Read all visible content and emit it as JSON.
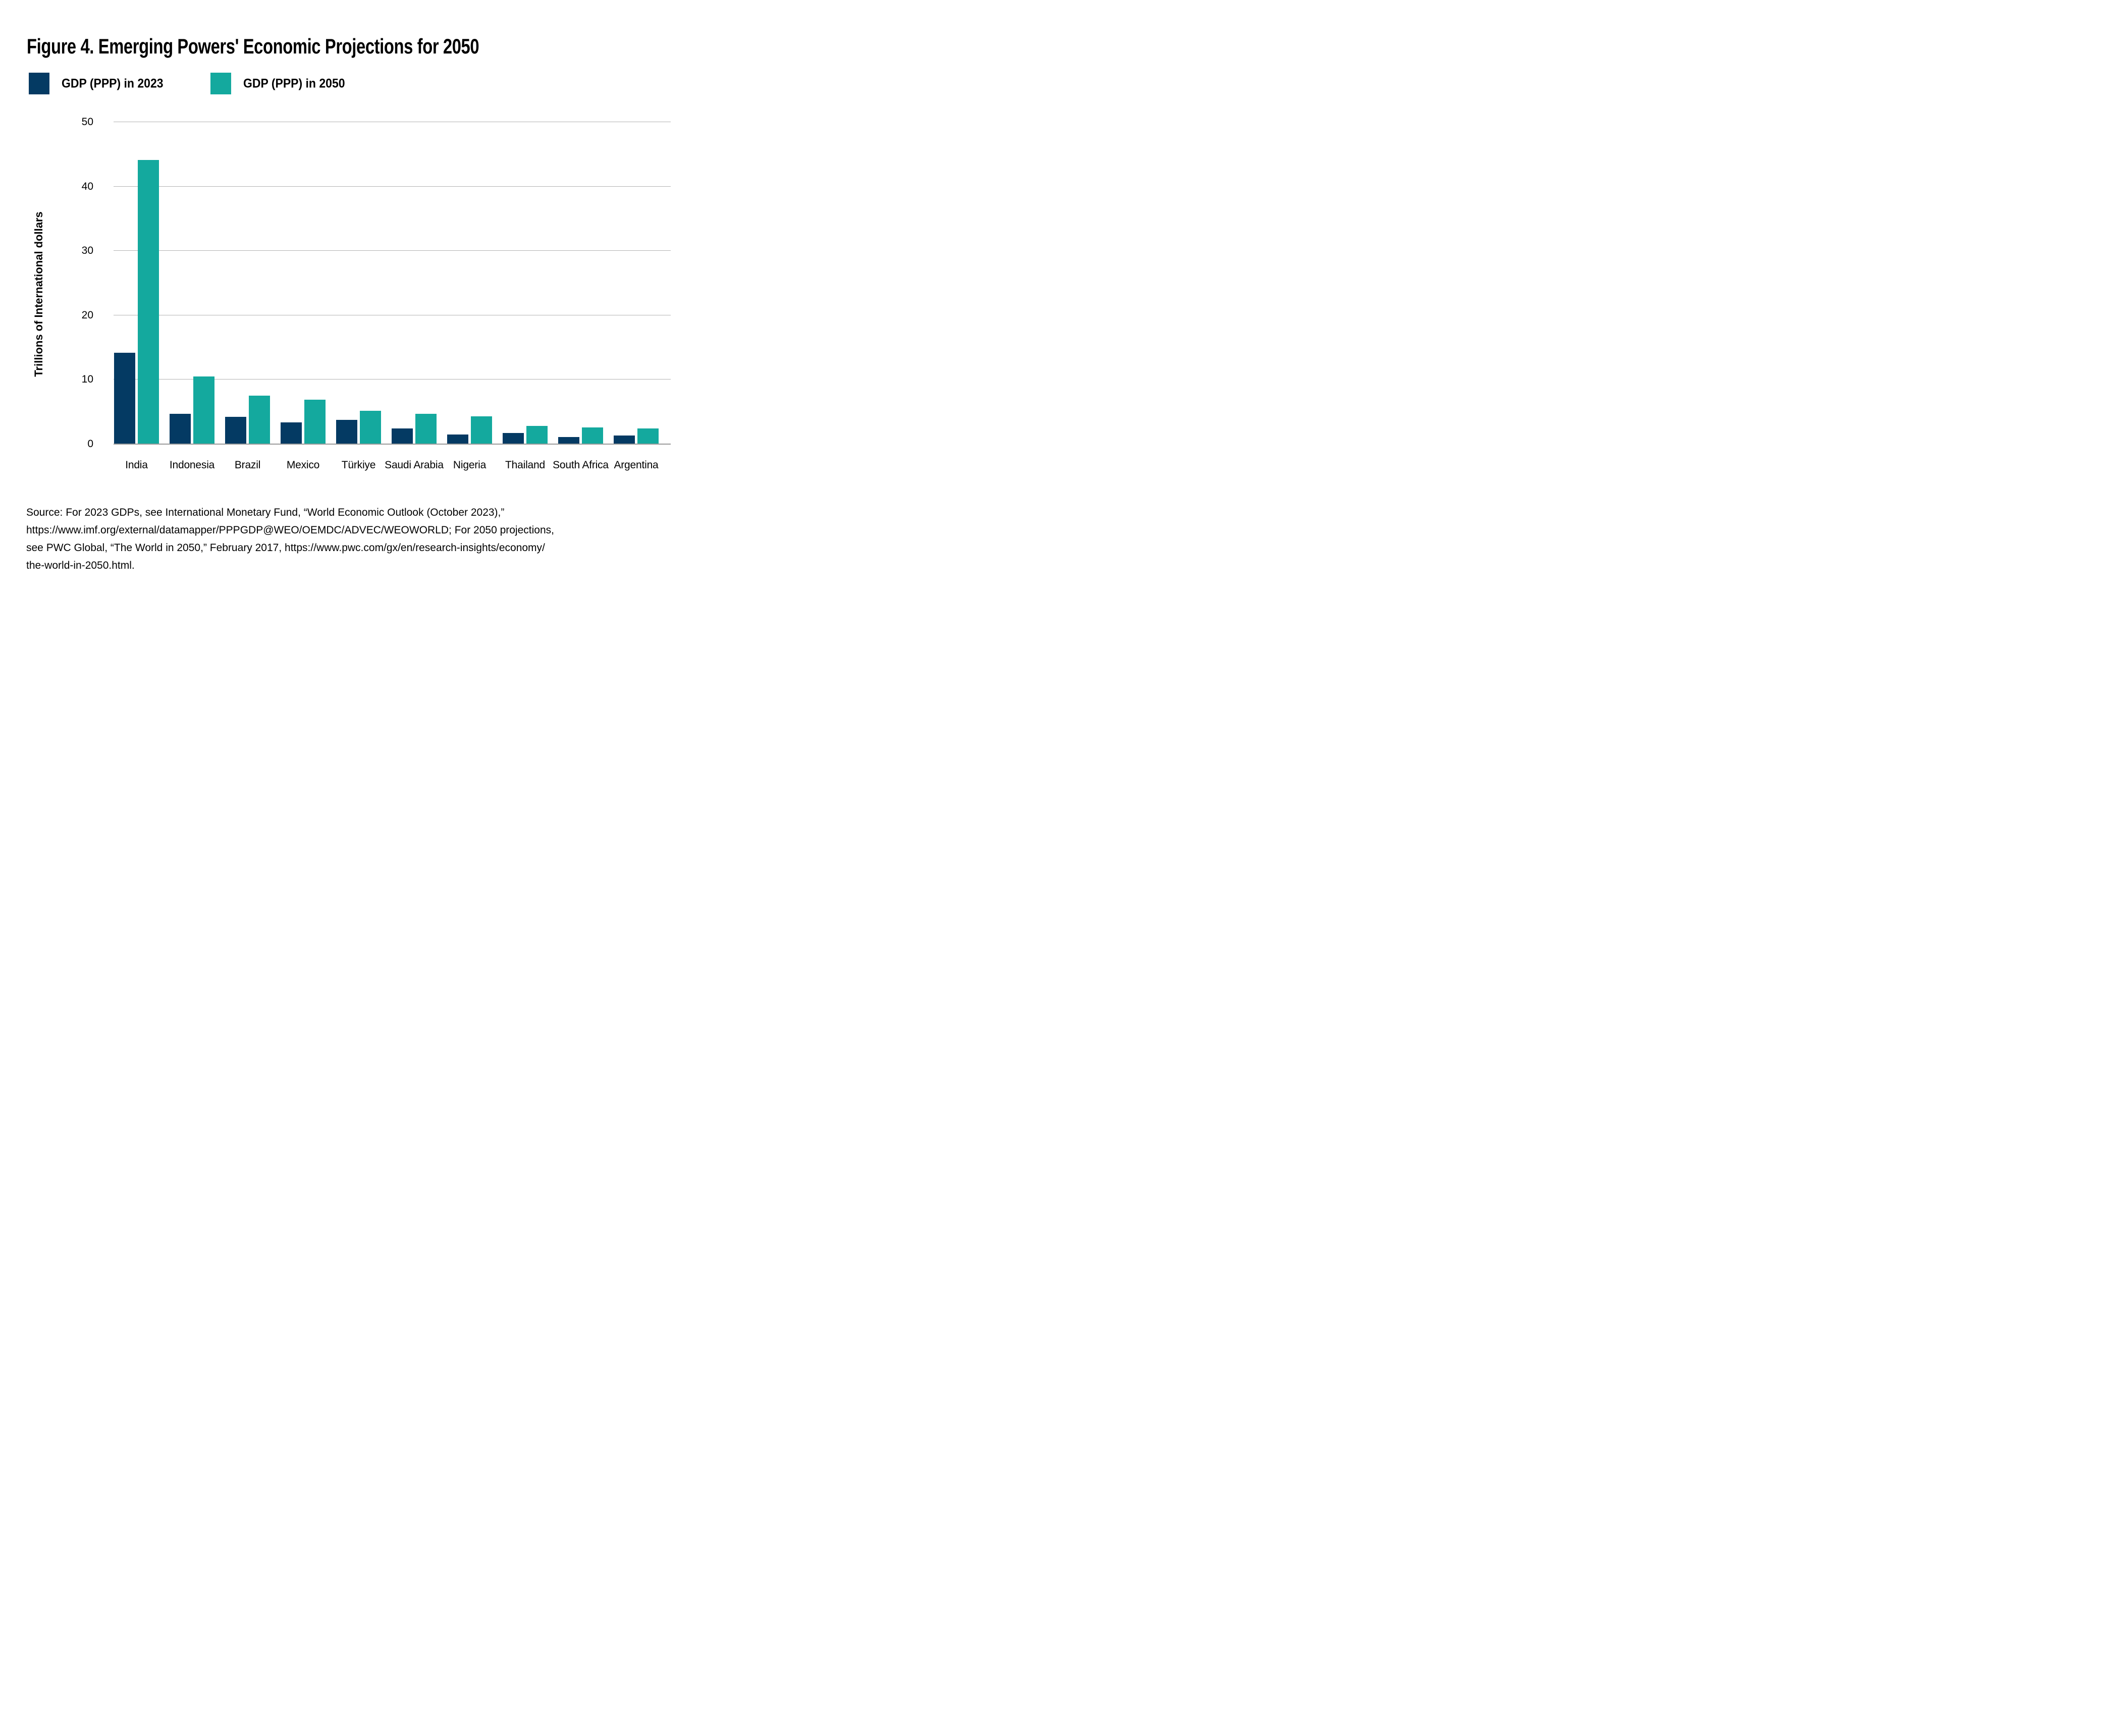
{
  "title": "Figure 4. Emerging Powers' Economic Projections for 2050",
  "legend": [
    {
      "label": "GDP (PPP) in 2023",
      "color": "#043a63"
    },
    {
      "label": "GDP (PPP) in 2050",
      "color": "#14a99e"
    }
  ],
  "chart_data": {
    "type": "bar",
    "title": "Figure 4. Emerging Powers' Economic Projections for 2050",
    "categories": [
      "India",
      "Indonesia",
      "Brazil",
      "Mexico",
      "Türkiye",
      "Saudi Arabia",
      "Nigeria",
      "Thailand",
      "South Africa",
      "Argentina"
    ],
    "series": [
      {
        "name": "GDP (PPP) in 2023",
        "color": "#043a63",
        "values": [
          14.2,
          4.7,
          4.2,
          3.4,
          3.8,
          2.4,
          1.5,
          1.7,
          1.1,
          1.3
        ]
      },
      {
        "name": "GDP (PPP) in 2050",
        "color": "#14a99e",
        "values": [
          44.1,
          10.5,
          7.5,
          6.9,
          5.2,
          4.7,
          4.3,
          2.8,
          2.6,
          2.4
        ]
      }
    ],
    "xlabel": "",
    "ylabel": "Trillions of International dollars",
    "ylim": [
      0,
      50
    ],
    "yticks": [
      0,
      10,
      20,
      30,
      40,
      50
    ],
    "grid": true,
    "gridline_color": "#b4b4b4",
    "legend_position": "top-left"
  },
  "source": {
    "lines": [
      "Source: For 2023 GDPs, see International Monetary Fund, “World Economic Outlook (October 2023),”",
      "https://www.imf.org/external/datamapper/PPPGDP@WEO/OEMDC/ADVEC/WEOWORLD; For 2050 projections,",
      "see PWC Global, “The World in 2050,” February 2017, https://www.pwc.com/gx/en/research-insights/economy/",
      "the-world-in-2050.html."
    ]
  }
}
